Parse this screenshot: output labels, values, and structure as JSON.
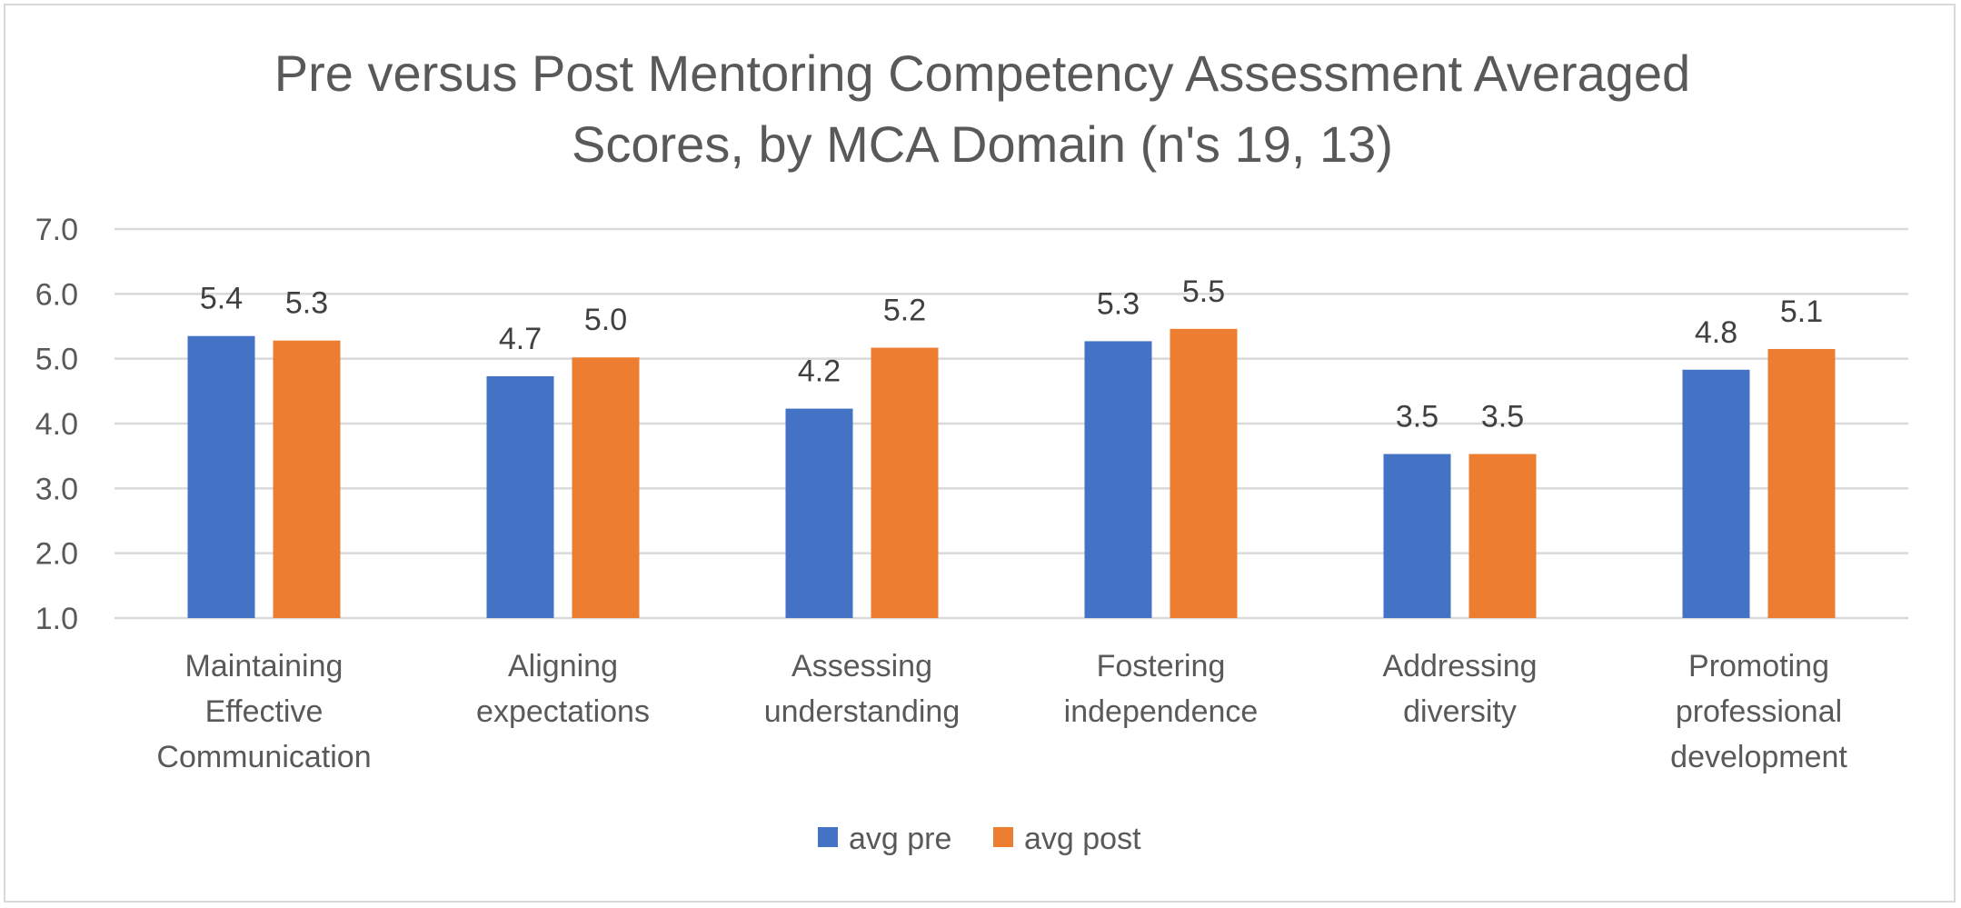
{
  "chart_data": {
    "type": "bar",
    "title": "Pre versus Post Mentoring Competency Assessment Averaged Scores, by MCA Domain (n's 19, 13)",
    "title_lines": [
      "Pre versus Post Mentoring Competency Assessment Averaged",
      "Scores, by MCA Domain (n's 19, 13)"
    ],
    "categories": [
      [
        "Maintaining",
        "Effective",
        "Communication"
      ],
      [
        "Aligning",
        "expectations"
      ],
      [
        "Assessing",
        "understanding"
      ],
      [
        "Fostering",
        "independence"
      ],
      [
        "Addressing",
        "diversity"
      ],
      [
        "Promoting",
        "professional",
        "development"
      ]
    ],
    "series": [
      {
        "name": "avg pre",
        "color": "#4472c4",
        "values": [
          5.35,
          4.73,
          4.23,
          5.27,
          3.53,
          4.83
        ],
        "labels": [
          "5.4",
          "4.7",
          "4.2",
          "5.3",
          "3.5",
          "4.8"
        ]
      },
      {
        "name": "avg post",
        "color": "#ed7d31",
        "values": [
          5.28,
          5.02,
          5.17,
          5.46,
          3.53,
          5.15
        ],
        "labels": [
          "5.3",
          "5.0",
          "5.2",
          "5.5",
          "3.5",
          "5.1"
        ]
      }
    ],
    "ylim": [
      1.0,
      7.0
    ],
    "yticks": [
      "1.0",
      "2.0",
      "3.0",
      "4.0",
      "5.0",
      "6.0",
      "7.0"
    ],
    "xlabel": "",
    "ylabel": "",
    "grid": true,
    "legend_position": "bottom"
  }
}
